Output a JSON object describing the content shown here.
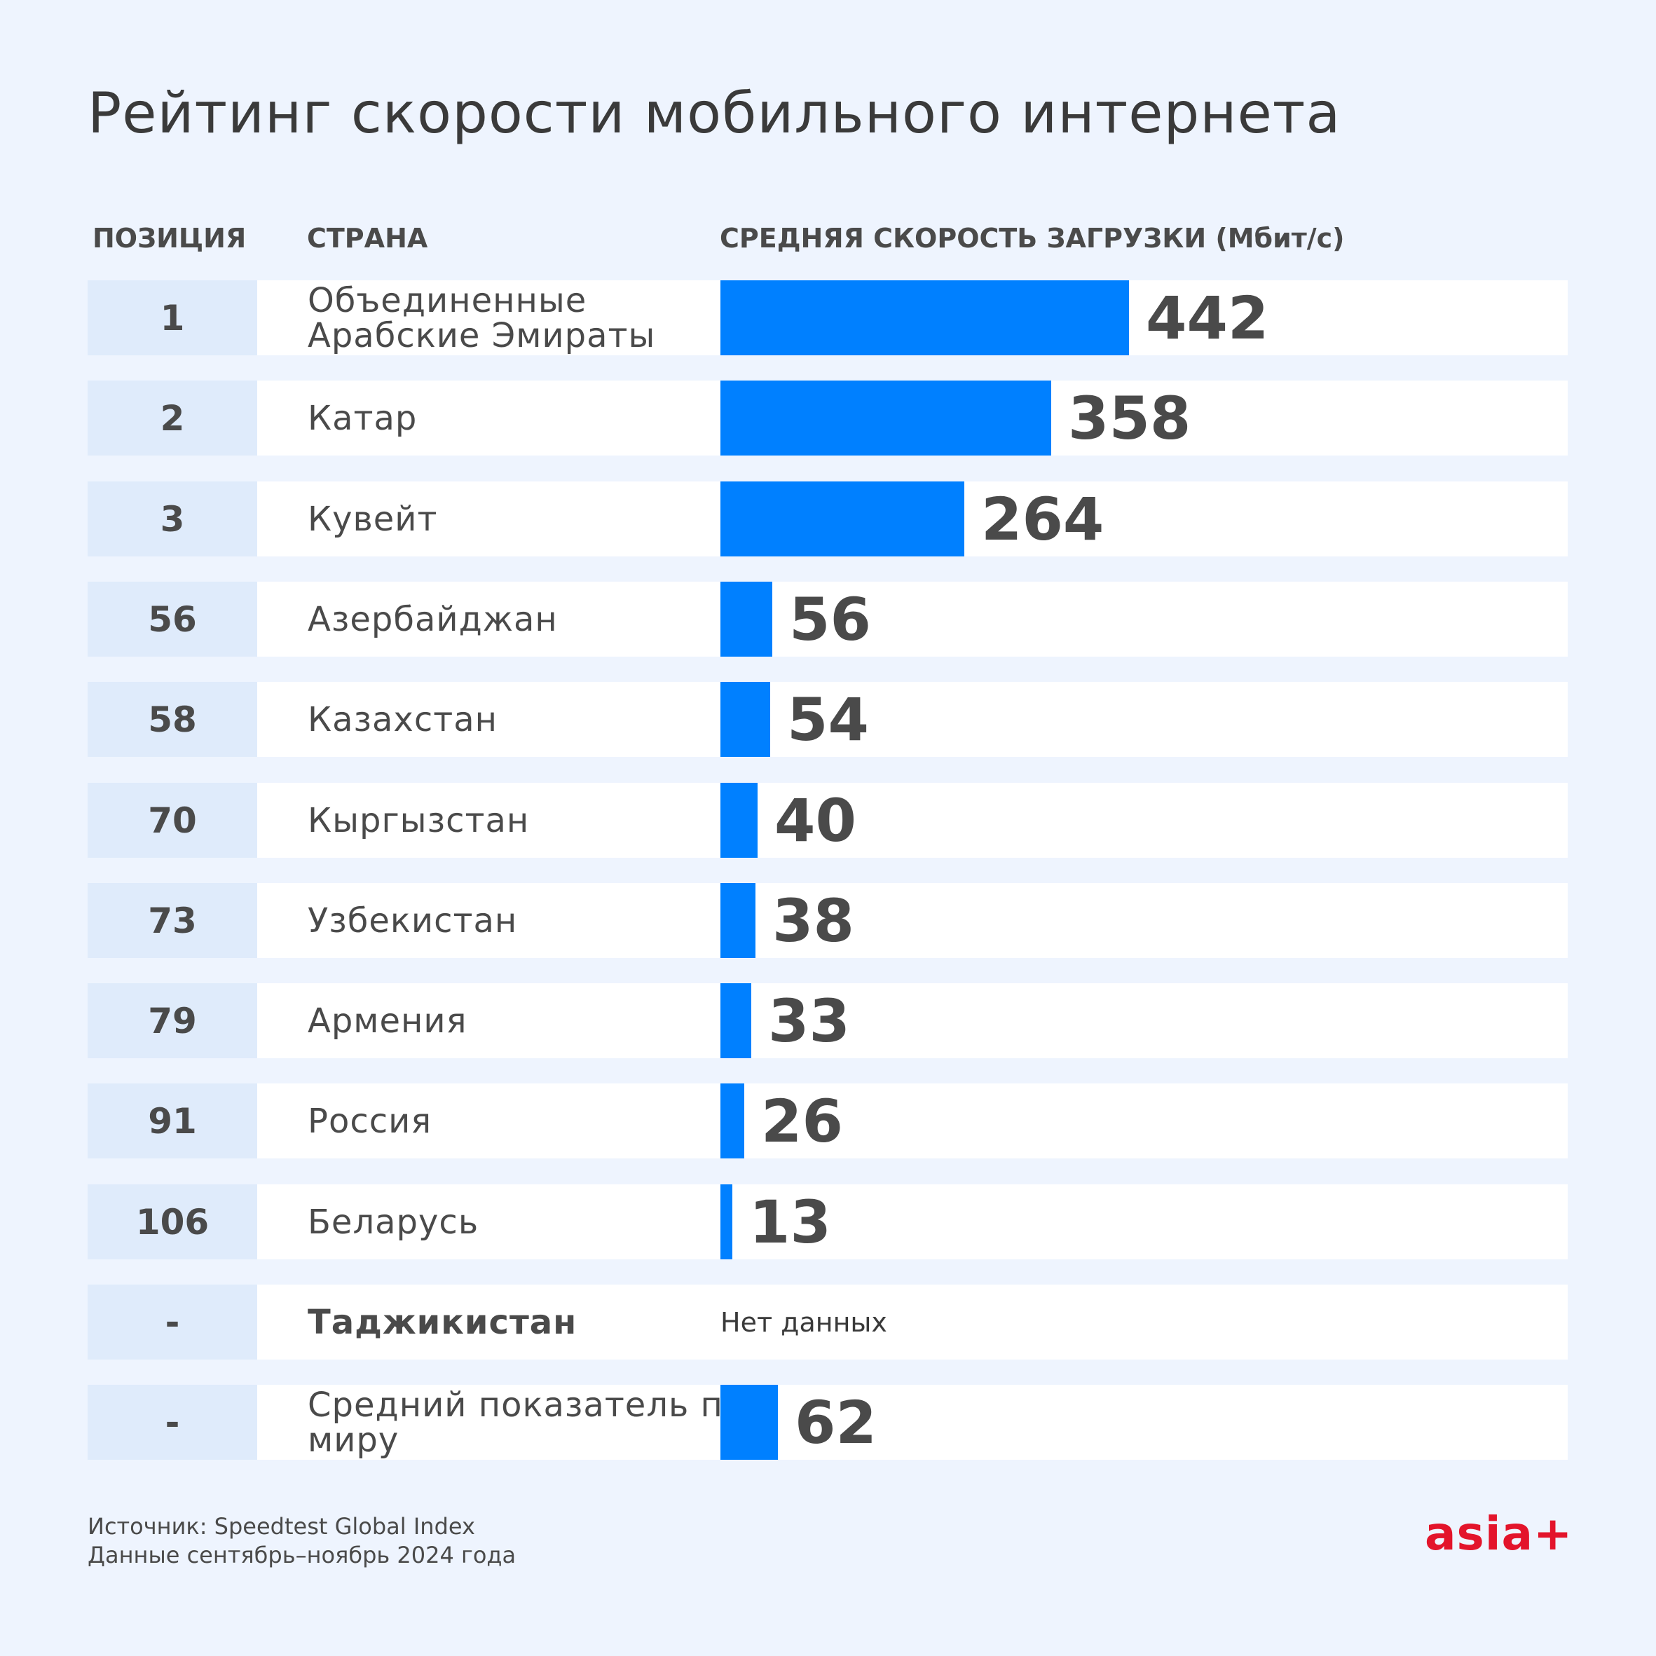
{
  "header": {
    "title": "Рейтинг скорости мобильного интернета",
    "col_position": "ПОЗИЦИЯ",
    "col_country": "СТРАНА",
    "col_speed": "СРЕДНЯЯ СКОРОСТЬ ЗАГРУЗКИ (Мбит/с)"
  },
  "chart_data": {
    "type": "bar",
    "orientation": "horizontal",
    "title": "Рейтинг скорости мобильного интернета",
    "xlabel": "СРЕДНЯЯ СКОРОСТЬ ЗАГРУЗКИ (Мбит/с)",
    "ylabel": "СТРАНА",
    "xlim": [
      0,
      442
    ],
    "grid": false,
    "rows": [
      {
        "position": "1",
        "country": "Объединенные Арабские Эмираты",
        "value": 442,
        "label": "442"
      },
      {
        "position": "2",
        "country": "Катар",
        "value": 358,
        "label": "358"
      },
      {
        "position": "3",
        "country": "Кувейт",
        "value": 264,
        "label": "264"
      },
      {
        "position": "56",
        "country": "Азербайджан",
        "value": 56,
        "label": "56"
      },
      {
        "position": "58",
        "country": "Казахстан",
        "value": 54,
        "label": "54"
      },
      {
        "position": "70",
        "country": "Кыргызстан",
        "value": 40,
        "label": "40"
      },
      {
        "position": "73",
        "country": "Узбекистан",
        "value": 38,
        "label": "38"
      },
      {
        "position": "79",
        "country": "Армения",
        "value": 33,
        "label": "33"
      },
      {
        "position": "91",
        "country": "Россия",
        "value": 26,
        "label": "26"
      },
      {
        "position": "106",
        "country": "Беларусь",
        "value": 13,
        "label": "13"
      },
      {
        "position": "-",
        "country": "Таджикистан",
        "value": null,
        "label": "Нет данных",
        "highlight": true
      },
      {
        "position": "-",
        "country": "Средний показатель по миру",
        "value": 62,
        "label": "62"
      }
    ]
  },
  "footer": {
    "source": "Источник: Speedtest Global Index",
    "period": "Данные сентябрь–ноябрь 2024 года",
    "logo": "asia+"
  },
  "colors": {
    "background": "#eef4fe",
    "bar": "#0080ff",
    "position_cell": "#dfebfb",
    "logo": "#e3142b"
  }
}
